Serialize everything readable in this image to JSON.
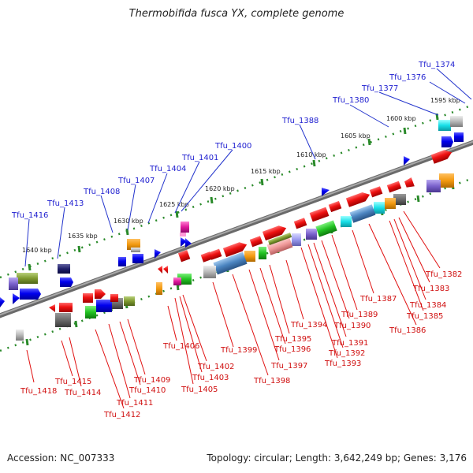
{
  "title": "Thermobifida fusca YX, complete genome",
  "footer": {
    "accession": "Accession: NC_007333",
    "topology": "Topology: circular; Length: 3,642,249 bp; Genes: 3,176"
  },
  "colors": {
    "backbone": "#7a7a7a",
    "tick": "#2a8a2a",
    "label_top": "#1f1fd0",
    "label_bottom": "#d01010"
  },
  "kbp_labels": [
    "1595 kbp",
    "1600 kbp",
    "1605 kbp",
    "1610 kbp",
    "1615 kbp",
    "1620 kbp",
    "1625 kbp",
    "1630 kbp",
    "1635 kbp",
    "1640 kbp"
  ],
  "top_genes": [
    "Tfu_1374",
    "Tfu_1376",
    "Tfu_1377",
    "Tfu_1380",
    "Tfu_1388",
    "Tfu_1400",
    "Tfu_1401",
    "Tfu_1404",
    "Tfu_1407",
    "Tfu_1408",
    "Tfu_1413",
    "Tfu_1416"
  ],
  "bottom_genes": [
    "Tfu_1382",
    "Tfu_1383",
    "Tfu_1384",
    "Tfu_1385",
    "Tfu_1386",
    "Tfu_1387",
    "Tfu_1389",
    "Tfu_1390",
    "Tfu_1391",
    "Tfu_1392",
    "Tfu_1393",
    "Tfu_1394",
    "Tfu_1395",
    "Tfu_1396",
    "Tfu_1397",
    "Tfu_1398",
    "Tfu_1399",
    "Tfu_1402",
    "Tfu_1403",
    "Tfu_1405",
    "Tfu_1406",
    "Tfu_1409",
    "Tfu_1410",
    "Tfu_1411",
    "Tfu_1412",
    "Tfu_1414",
    "Tfu_1415",
    "Tfu_1418"
  ]
}
